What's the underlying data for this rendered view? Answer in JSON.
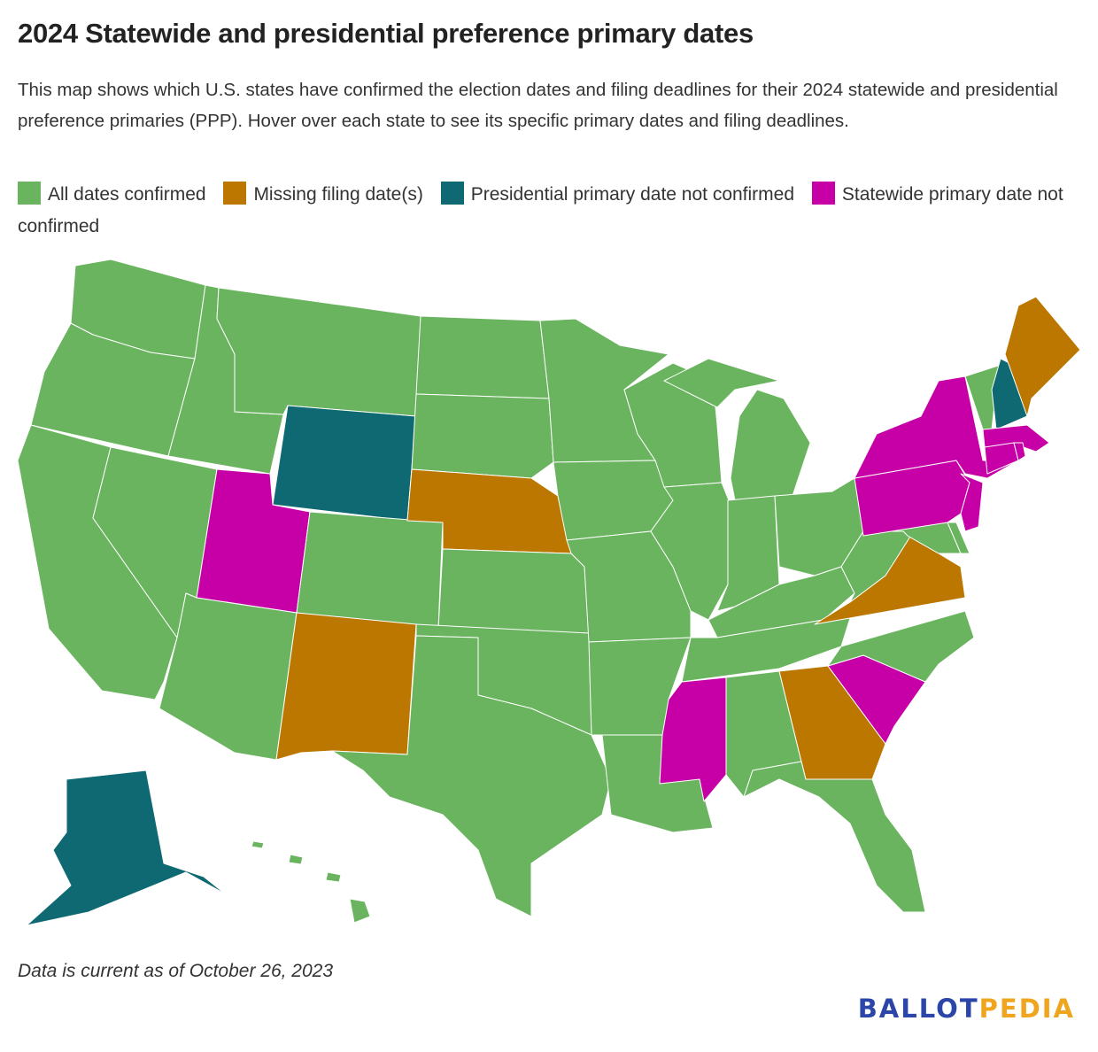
{
  "title": "2024 Statewide and presidential preference primary dates",
  "description": "This map shows which U.S. states have confirmed the election dates and filing deadlines for their 2024 statewide and presidential preference primaries (PPP). Hover over each state to see its specific primary dates and filing deadlines.",
  "legend": [
    {
      "key": "confirmed",
      "label": "All dates confirmed",
      "color": "#6ab45f"
    },
    {
      "key": "missing_filing",
      "label": "Missing filing date(s)",
      "color": "#bc7700"
    },
    {
      "key": "ppp_unconfirmed",
      "label": "Presidential primary date not confirmed",
      "color": "#0e6973"
    },
    {
      "key": "statewide_unconfirmed",
      "label": "Statewide primary date not confirmed",
      "color": "#c600a6"
    }
  ],
  "states": {
    "WA": "confirmed",
    "OR": "confirmed",
    "CA": "confirmed",
    "NV": "confirmed",
    "ID": "confirmed",
    "MT": "confirmed",
    "WY": "ppp_unconfirmed",
    "UT": "statewide_unconfirmed",
    "CO": "confirmed",
    "AZ": "confirmed",
    "NM": "missing_filing",
    "ND": "confirmed",
    "SD": "confirmed",
    "NE": "missing_filing",
    "KS": "confirmed",
    "OK": "confirmed",
    "TX": "confirmed",
    "MN": "confirmed",
    "IA": "confirmed",
    "MO": "confirmed",
    "AR": "confirmed",
    "LA": "confirmed",
    "WI": "confirmed",
    "IL": "confirmed",
    "MI": "confirmed",
    "IN": "confirmed",
    "OH": "confirmed",
    "KY": "confirmed",
    "TN": "confirmed",
    "MS": "statewide_unconfirmed",
    "AL": "confirmed",
    "GA": "missing_filing",
    "FL": "confirmed",
    "SC": "statewide_unconfirmed",
    "NC": "confirmed",
    "VA": "missing_filing",
    "WV": "confirmed",
    "MD": "confirmed",
    "DE": "confirmed",
    "PA": "statewide_unconfirmed",
    "NJ": "statewide_unconfirmed",
    "NY": "statewide_unconfirmed",
    "VT": "confirmed",
    "NH": "ppp_unconfirmed",
    "ME": "missing_filing",
    "MA": "statewide_unconfirmed",
    "CT": "statewide_unconfirmed",
    "RI": "statewide_unconfirmed",
    "AK": "ppp_unconfirmed",
    "HI": "confirmed"
  },
  "footnote": "Data is current as of October 26, 2023",
  "logo": {
    "part1": "BALLOT",
    "part2": "PEDIA"
  }
}
